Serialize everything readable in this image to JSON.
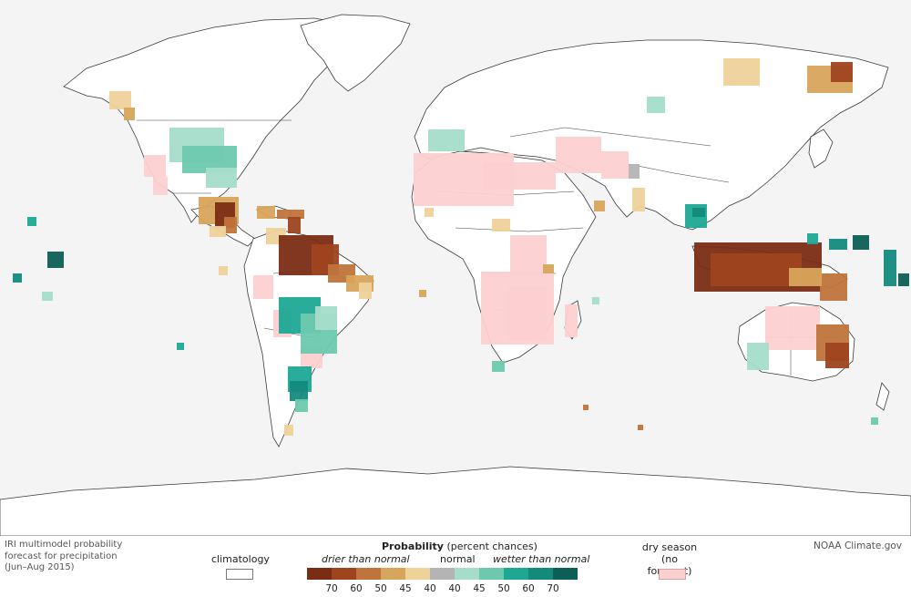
{
  "caption": {
    "line1": "IRI multimodel probability",
    "line2": "forecast for precipitation",
    "line3": "(Jun–Aug 2015)"
  },
  "credit": "NOAA Climate.gov",
  "legend": {
    "climatology_label": "climatology",
    "probability_title": "Probability",
    "probability_subtitle": "(percent chances)",
    "drier_label": "drier than normal",
    "normal_label": "normal",
    "wetter_label": "wetter than normal",
    "tick_labels": [
      "70",
      "60",
      "50",
      "45",
      "40",
      "40",
      "45",
      "50",
      "60",
      "70"
    ],
    "colors": [
      "#7b2d14",
      "#9e4520",
      "#c0743c",
      "#d8a55c",
      "#efd29a",
      "#b4b4b4",
      "#a6ddca",
      "#6dc9ae",
      "#1ea894",
      "#138a7c",
      "#0d5e55"
    ],
    "dry_season_line1": "dry season",
    "dry_season_line2": "(no forecast)",
    "dry_season_color": "#fcd0d0",
    "climatology_color": "#ffffff"
  },
  "map": {
    "background_color": "#f4f4f4",
    "land_color": "#ffffff",
    "boundary_color": "#3a3a3a"
  }
}
